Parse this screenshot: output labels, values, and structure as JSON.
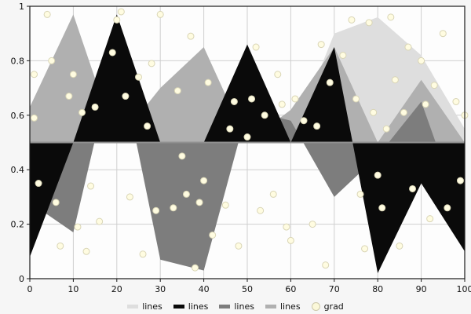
{
  "figure": {
    "bg": "#f6f6f6",
    "plot_bg": "#fdfdfd",
    "grid_color": "#cfcfcf",
    "axis_color": "#1a1a1a",
    "baseline_color": "#909090",
    "tick_label_color": "#111111"
  },
  "chart_data": {
    "type": "area",
    "title": "",
    "xlabel": "",
    "ylabel": "",
    "xlim": [
      0,
      100
    ],
    "ylim": [
      0,
      1
    ],
    "grid": true,
    "baseline": 0.5,
    "x": [
      0,
      10,
      20,
      30,
      40,
      50,
      60,
      70,
      80,
      90,
      100
    ],
    "xticks": [
      0,
      10,
      20,
      30,
      40,
      50,
      60,
      70,
      80,
      90,
      100
    ],
    "yticks": [
      0,
      0.2,
      0.4,
      0.6,
      0.8,
      1
    ],
    "series": [
      {
        "name": "lines",
        "color": "#dedede",
        "values": [
          0.5,
          0.5,
          0.5,
          0.5,
          0.5,
          0.5,
          0.5,
          0.9,
          0.96,
          0.82,
          0.55
        ]
      },
      {
        "name": "lines",
        "color": "#b0b0b0",
        "values": [
          0.63,
          0.97,
          0.5,
          0.7,
          0.85,
          0.5,
          0.62,
          0.85,
          0.5,
          0.73,
          0.5
        ]
      },
      {
        "name": "lines",
        "color": "#7d7d7d",
        "values": [
          0.28,
          0.17,
          0.85,
          0.07,
          0.03,
          0.62,
          0.58,
          0.3,
          0.45,
          0.65,
          0.2
        ]
      },
      {
        "name": "lines",
        "color": "#0a0a0a",
        "values": [
          0.08,
          0.5,
          0.97,
          0.5,
          0.5,
          0.86,
          0.5,
          0.85,
          0.02,
          0.35,
          0.1
        ]
      }
    ],
    "scatter": {
      "name": "grad",
      "color": "#fffce1",
      "edge": "#d9d5b6",
      "points": [
        [
          1,
          0.59
        ],
        [
          1,
          0.75
        ],
        [
          2,
          0.35
        ],
        [
          4,
          0.97
        ],
        [
          5,
          0.8
        ],
        [
          6,
          0.28
        ],
        [
          7,
          0.12
        ],
        [
          9,
          0.67
        ],
        [
          10,
          0.75
        ],
        [
          11,
          0.19
        ],
        [
          12,
          0.61
        ],
        [
          13,
          0.1
        ],
        [
          14,
          0.34
        ],
        [
          15,
          0.63
        ],
        [
          16,
          0.21
        ],
        [
          19,
          0.83
        ],
        [
          20,
          0.95
        ],
        [
          21,
          0.98
        ],
        [
          22,
          0.67
        ],
        [
          23,
          0.3
        ],
        [
          25,
          0.74
        ],
        [
          26,
          0.09
        ],
        [
          27,
          0.56
        ],
        [
          28,
          0.79
        ],
        [
          29,
          0.25
        ],
        [
          30,
          0.97
        ],
        [
          33,
          0.26
        ],
        [
          34,
          0.69
        ],
        [
          35,
          0.45
        ],
        [
          36,
          0.31
        ],
        [
          37,
          0.89
        ],
        [
          38,
          0.04
        ],
        [
          39,
          0.28
        ],
        [
          40,
          0.36
        ],
        [
          41,
          0.72
        ],
        [
          42,
          0.16
        ],
        [
          45,
          0.27
        ],
        [
          46,
          0.55
        ],
        [
          47,
          0.65
        ],
        [
          48,
          0.12
        ],
        [
          50,
          0.52
        ],
        [
          51,
          0.66
        ],
        [
          52,
          0.85
        ],
        [
          53,
          0.25
        ],
        [
          54,
          0.6
        ],
        [
          56,
          0.31
        ],
        [
          57,
          0.75
        ],
        [
          58,
          0.64
        ],
        [
          59,
          0.19
        ],
        [
          60,
          0.14
        ],
        [
          61,
          0.66
        ],
        [
          63,
          0.58
        ],
        [
          65,
          0.2
        ],
        [
          66,
          0.56
        ],
        [
          67,
          0.86
        ],
        [
          68,
          0.05
        ],
        [
          69,
          0.72
        ],
        [
          72,
          0.82
        ],
        [
          74,
          0.95
        ],
        [
          75,
          0.66
        ],
        [
          76,
          0.31
        ],
        [
          77,
          0.11
        ],
        [
          78,
          0.94
        ],
        [
          79,
          0.61
        ],
        [
          80,
          0.38
        ],
        [
          81,
          0.26
        ],
        [
          82,
          0.55
        ],
        [
          83,
          0.96
        ],
        [
          84,
          0.73
        ],
        [
          85,
          0.12
        ],
        [
          86,
          0.61
        ],
        [
          87,
          0.85
        ],
        [
          88,
          0.33
        ],
        [
          90,
          0.8
        ],
        [
          91,
          0.64
        ],
        [
          92,
          0.22
        ],
        [
          93,
          0.71
        ],
        [
          95,
          0.9
        ],
        [
          96,
          0.26
        ],
        [
          98,
          0.65
        ],
        [
          99,
          0.36
        ],
        [
          100,
          0.6
        ]
      ]
    },
    "legend": {
      "position": "bottom",
      "entries": [
        {
          "label": "lines",
          "color": "#dedede",
          "marker": "line"
        },
        {
          "label": "lines",
          "color": "#0a0a0a",
          "marker": "line"
        },
        {
          "label": "lines",
          "color": "#7d7d7d",
          "marker": "line"
        },
        {
          "label": "lines",
          "color": "#b0b0b0",
          "marker": "line"
        },
        {
          "label": "grad",
          "color": "#fbf8d9",
          "marker": "circle"
        }
      ]
    }
  }
}
